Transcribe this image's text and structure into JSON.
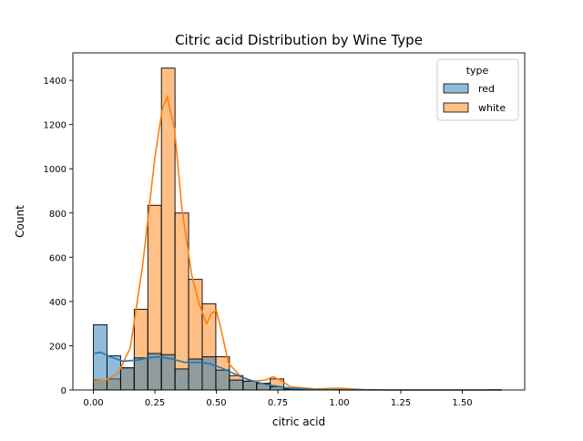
{
  "chart_data": {
    "type": "histogram",
    "title": "Citric acid Distribution by Wine Type",
    "xlabel": "citric acid",
    "ylabel": "Count",
    "xlim": [
      -0.0835,
      1.7535
    ],
    "ylim": [
      0,
      1524
    ],
    "x_ticks": [
      0.0,
      0.25,
      0.5,
      0.75,
      1.0,
      1.25,
      1.5
    ],
    "x_tick_labels": [
      "0.00",
      "0.25",
      "0.50",
      "0.75",
      "1.00",
      "1.25",
      "1.50"
    ],
    "y_ticks": [
      0,
      200,
      400,
      600,
      800,
      1000,
      1200,
      1400
    ],
    "y_tick_labels": [
      "0",
      "200",
      "400",
      "600",
      "800",
      "1000",
      "1200",
      "1400"
    ],
    "bin_width": 0.0553,
    "bin_starts": [
      0.0,
      0.0553,
      0.1106,
      0.1659,
      0.2212,
      0.2765,
      0.3318,
      0.3871,
      0.4424,
      0.4977,
      0.553,
      0.6083,
      0.6636,
      0.7189,
      0.7742,
      0.8295,
      0.8848,
      0.9401,
      0.9954,
      1.0507,
      1.106,
      1.1613,
      1.2166,
      1.2719,
      1.3272,
      1.3825,
      1.4378,
      1.4931,
      1.5484,
      1.6037
    ],
    "legend": {
      "title": "type",
      "position": "upper right"
    },
    "grid": false,
    "series": [
      {
        "name": "white",
        "color": "#ff7f0e",
        "values": [
          45,
          50,
          100,
          365,
          835,
          1455,
          800,
          500,
          390,
          150,
          65,
          40,
          30,
          50,
          5,
          2,
          1,
          1,
          5,
          1,
          1,
          0,
          0,
          0,
          0,
          0,
          0,
          0,
          0,
          1
        ],
        "kde": [
          [
            0.0,
            40
          ],
          [
            0.05,
            45
          ],
          [
            0.1,
            75
          ],
          [
            0.15,
            190
          ],
          [
            0.2,
            560
          ],
          [
            0.25,
            1050
          ],
          [
            0.28,
            1270
          ],
          [
            0.3,
            1325
          ],
          [
            0.33,
            1180
          ],
          [
            0.36,
            820
          ],
          [
            0.4,
            520
          ],
          [
            0.43,
            390
          ],
          [
            0.46,
            300
          ],
          [
            0.48,
            345
          ],
          [
            0.5,
            360
          ],
          [
            0.52,
            270
          ],
          [
            0.55,
            120
          ],
          [
            0.6,
            60
          ],
          [
            0.65,
            40
          ],
          [
            0.7,
            45
          ],
          [
            0.73,
            60
          ],
          [
            0.76,
            45
          ],
          [
            0.8,
            15
          ],
          [
            0.9,
            5
          ],
          [
            1.0,
            8
          ],
          [
            1.1,
            2
          ],
          [
            1.2,
            0
          ],
          [
            1.66,
            0
          ]
        ]
      },
      {
        "name": "red",
        "color": "#1f77b4",
        "values": [
          295,
          155,
          100,
          145,
          165,
          160,
          95,
          140,
          150,
          90,
          45,
          40,
          30,
          15,
          5,
          0,
          0,
          1,
          0,
          0,
          0,
          0,
          0,
          0,
          0,
          0,
          0,
          0,
          0,
          1
        ],
        "kde": [
          [
            0.0,
            165
          ],
          [
            0.03,
            170
          ],
          [
            0.07,
            150
          ],
          [
            0.12,
            130
          ],
          [
            0.18,
            135
          ],
          [
            0.22,
            145
          ],
          [
            0.27,
            150
          ],
          [
            0.32,
            140
          ],
          [
            0.37,
            125
          ],
          [
            0.42,
            125
          ],
          [
            0.47,
            120
          ],
          [
            0.52,
            100
          ],
          [
            0.57,
            75
          ],
          [
            0.62,
            50
          ],
          [
            0.7,
            25
          ],
          [
            0.8,
            8
          ],
          [
            0.9,
            2
          ],
          [
            1.0,
            1
          ],
          [
            1.2,
            0
          ],
          [
            1.66,
            0
          ]
        ]
      }
    ]
  }
}
